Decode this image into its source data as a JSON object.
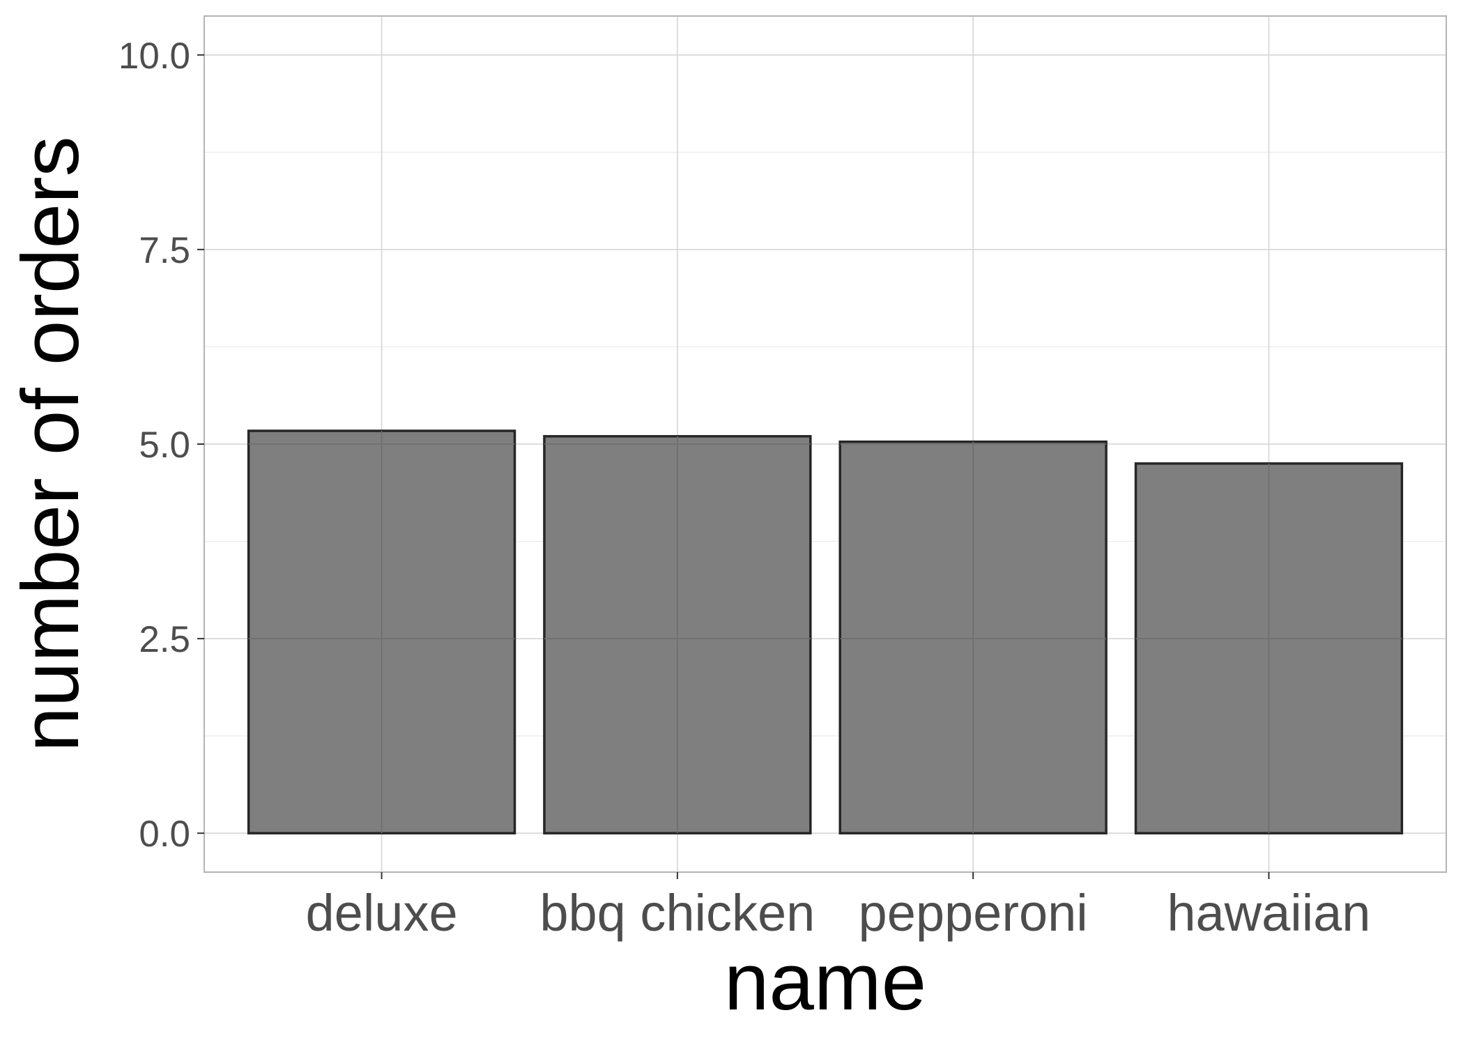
{
  "chart_data": {
    "type": "bar",
    "title": "",
    "xlabel": "name",
    "ylabel": "number of orders",
    "categories": [
      "deluxe",
      "bbq chicken",
      "pepperoni",
      "hawaiian"
    ],
    "values": [
      5.17,
      5.1,
      5.03,
      4.75
    ],
    "ylim": [
      -0.5,
      10.5
    ],
    "yticks": [
      0.0,
      2.5,
      5.0,
      7.5,
      10.0
    ],
    "ytick_labels": [
      "0.0",
      "2.5",
      "5.0",
      "7.5",
      "10.0"
    ],
    "grid": true,
    "legend": "none",
    "colors": {
      "bar_fill": "#7f7f7f",
      "bar_stroke": "#262626",
      "grid_major": "#d9d9d9",
      "grid_minor": "#ebebeb",
      "panel_border": "#b3b3b3",
      "tick_label": "#4d4d4d",
      "axis_title": "#000000"
    }
  }
}
